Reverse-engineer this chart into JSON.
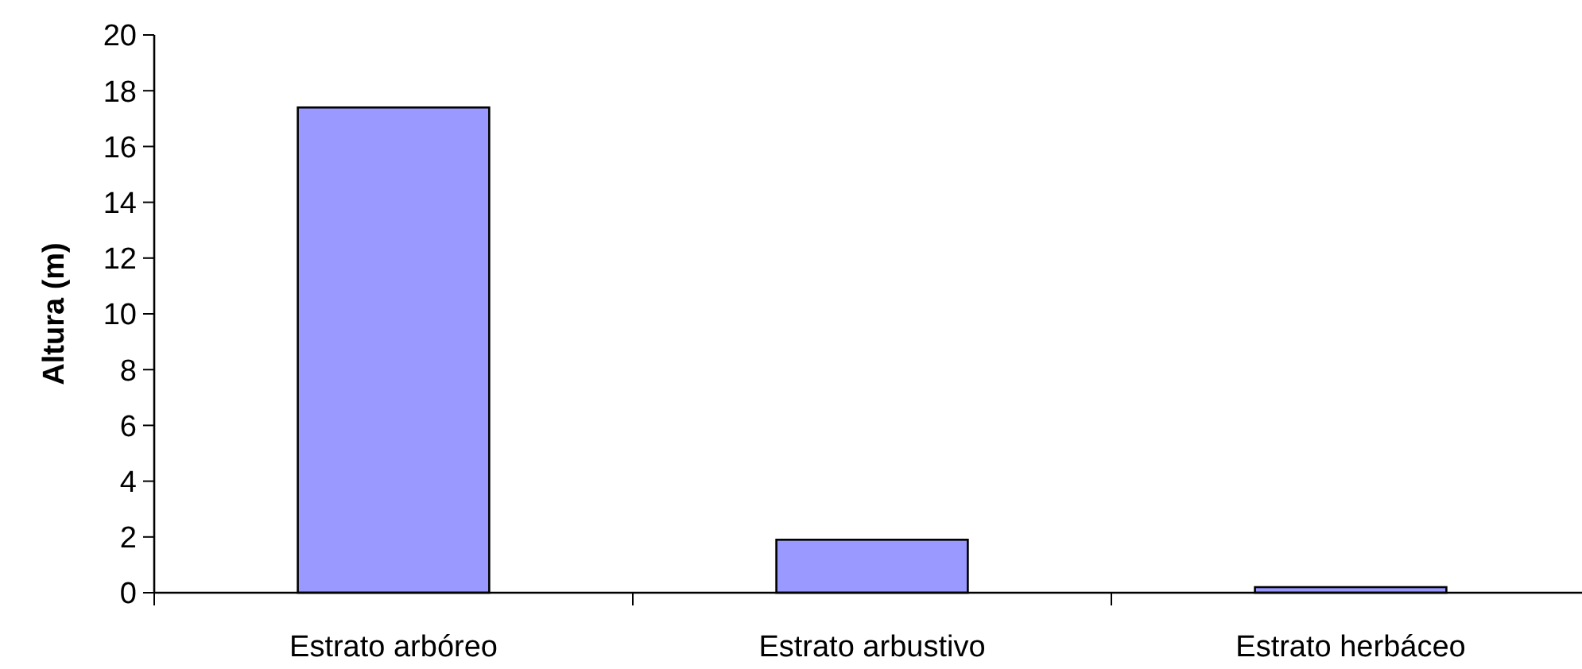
{
  "chart_data": {
    "type": "bar",
    "ylabel": "Altura (m)",
    "categories": [
      "Estrato arbóreo",
      "Estrato arbustivo",
      "Estrato herbáceo"
    ],
    "values": [
      17.4,
      1.9,
      0.2
    ],
    "color": "#9999ff",
    "ylim": [
      0,
      20
    ],
    "yticks": [
      0,
      2,
      4,
      6,
      8,
      10,
      12,
      14,
      16,
      18,
      20
    ],
    "grid": false
  }
}
